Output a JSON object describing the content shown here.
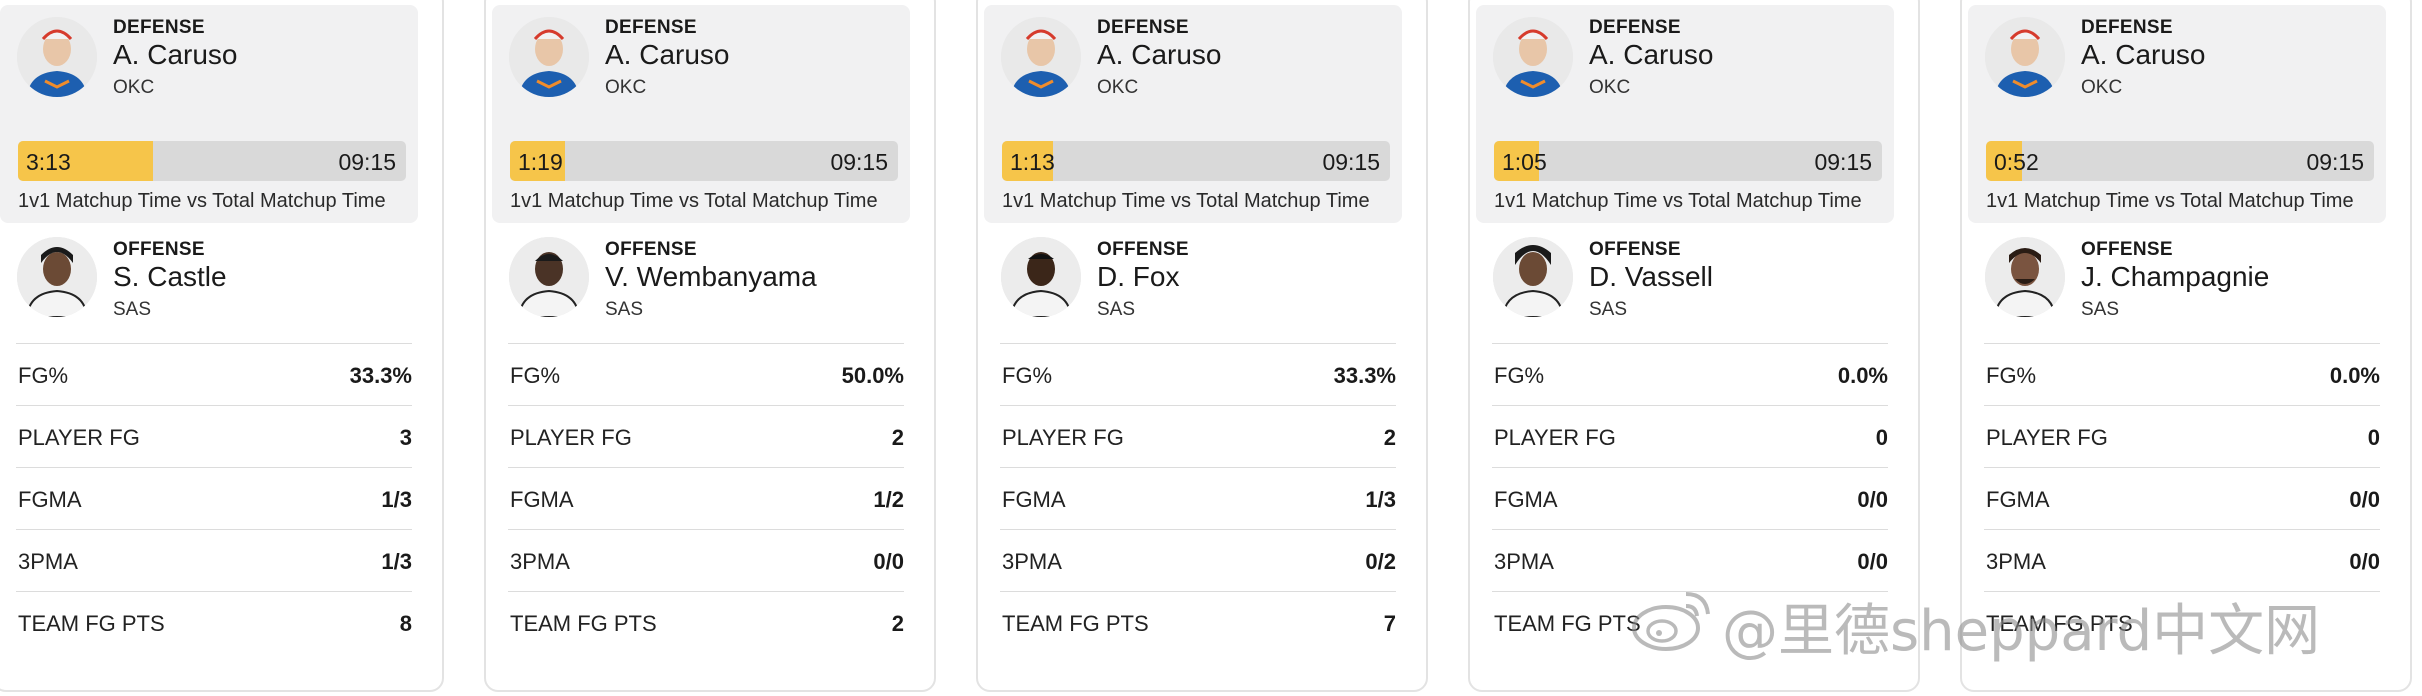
{
  "cards": [
    {
      "defense": {
        "role": "DEFENSE",
        "name": "A. Caruso",
        "team": "OKC"
      },
      "matchup": {
        "time": "3:13",
        "total": "09:15",
        "fraction": 0.348,
        "caption": "1v1 Matchup Time vs Total Matchup Time"
      },
      "offense": {
        "role": "OFFENSE",
        "name": "S. Castle",
        "team": "SAS"
      },
      "stats": [
        {
          "label": "FG%",
          "value": "33.3%"
        },
        {
          "label": "PLAYER FG",
          "value": "3"
        },
        {
          "label": "FGMA",
          "value": "1/3"
        },
        {
          "label": "3PMA",
          "value": "1/3"
        },
        {
          "label": "TEAM FG PTS",
          "value": "8"
        }
      ]
    },
    {
      "defense": {
        "role": "DEFENSE",
        "name": "A. Caruso",
        "team": "OKC"
      },
      "matchup": {
        "time": "1:19",
        "total": "09:15",
        "fraction": 0.142,
        "caption": "1v1 Matchup Time vs Total Matchup Time"
      },
      "offense": {
        "role": "OFFENSE",
        "name": "V. Wembanyama",
        "team": "SAS"
      },
      "stats": [
        {
          "label": "FG%",
          "value": "50.0%"
        },
        {
          "label": "PLAYER FG",
          "value": "2"
        },
        {
          "label": "FGMA",
          "value": "1/2"
        },
        {
          "label": "3PMA",
          "value": "0/0"
        },
        {
          "label": "TEAM FG PTS",
          "value": "2"
        }
      ]
    },
    {
      "defense": {
        "role": "DEFENSE",
        "name": "A. Caruso",
        "team": "OKC"
      },
      "matchup": {
        "time": "1:13",
        "total": "09:15",
        "fraction": 0.132,
        "caption": "1v1 Matchup Time vs Total Matchup Time"
      },
      "offense": {
        "role": "OFFENSE",
        "name": "D. Fox",
        "team": "SAS"
      },
      "stats": [
        {
          "label": "FG%",
          "value": "33.3%"
        },
        {
          "label": "PLAYER FG",
          "value": "2"
        },
        {
          "label": "FGMA",
          "value": "1/3"
        },
        {
          "label": "3PMA",
          "value": "0/2"
        },
        {
          "label": "TEAM FG PTS",
          "value": "7"
        }
      ]
    },
    {
      "defense": {
        "role": "DEFENSE",
        "name": "A. Caruso",
        "team": "OKC"
      },
      "matchup": {
        "time": "1:05",
        "total": "09:15",
        "fraction": 0.117,
        "caption": "1v1 Matchup Time vs Total Matchup Time"
      },
      "offense": {
        "role": "OFFENSE",
        "name": "D. Vassell",
        "team": "SAS"
      },
      "stats": [
        {
          "label": "FG%",
          "value": "0.0%"
        },
        {
          "label": "PLAYER FG",
          "value": "0"
        },
        {
          "label": "FGMA",
          "value": "0/0"
        },
        {
          "label": "3PMA",
          "value": "0/0"
        },
        {
          "label": "TEAM FG PTS",
          "value": ""
        }
      ]
    },
    {
      "defense": {
        "role": "DEFENSE",
        "name": "A. Caruso",
        "team": "OKC"
      },
      "matchup": {
        "time": "0:52",
        "total": "09:15",
        "fraction": 0.094,
        "caption": "1v1 Matchup Time vs Total Matchup Time"
      },
      "offense": {
        "role": "OFFENSE",
        "name": "J. Champagnie",
        "team": "SAS"
      },
      "stats": [
        {
          "label": "FG%",
          "value": "0.0%"
        },
        {
          "label": "PLAYER FG",
          "value": "0"
        },
        {
          "label": "FGMA",
          "value": "0/0"
        },
        {
          "label": "3PMA",
          "value": "0/0"
        },
        {
          "label": "TEAM FG PTS",
          "value": ""
        }
      ]
    }
  ],
  "colors": {
    "bar_fill": "#f6c54a",
    "bar_track": "#d9d9d9",
    "panel": "#f1f1f2"
  },
  "watermark": {
    "icon": "weibo-logo-icon",
    "text": "@里德sheppard中文网"
  }
}
